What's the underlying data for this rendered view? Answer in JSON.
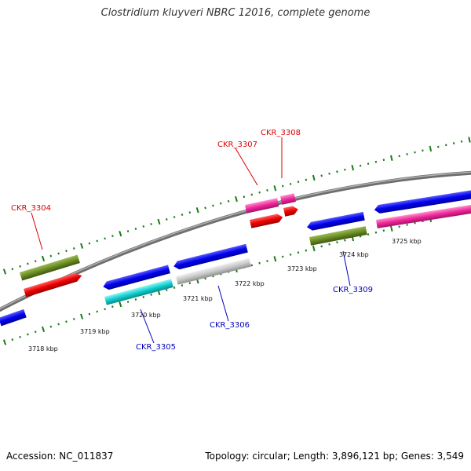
{
  "title": "Clostridium kluyveri NBRC 12016, complete genome",
  "accession": "Accession: NC_011837",
  "topology": "Topology: circular; Length: 3,896,121 bp; Genes: 3,549",
  "colors": {
    "forward_label": "#dd0000",
    "reverse_label": "#0000bb",
    "tick": "#1a7a1a",
    "backbone": "#8a8a8a"
  },
  "kbp_labels": [
    "3718 kbp",
    "3719 kbp",
    "3720 kbp",
    "3721 kbp",
    "3722 kbp",
    "3723 kbp",
    "3724 kbp",
    "3725 kbp"
  ],
  "gene_labels": {
    "ckr3304": "CKR_3304",
    "ckr3305": "CKR_3305",
    "ckr3306": "CKR_3306",
    "ckr3307": "CKR_3307",
    "ckr3308": "CKR_3308",
    "ckr3309": "CKR_3309"
  }
}
